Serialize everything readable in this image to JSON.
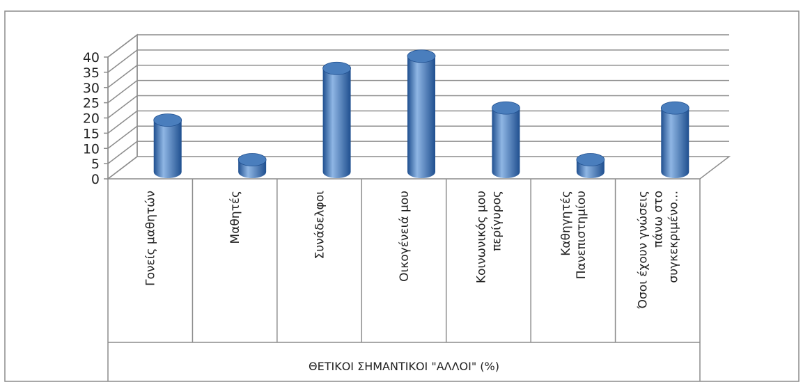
{
  "colors": {
    "bar": "#4a7ebd",
    "bar_dark": "#1f4f8f",
    "bar_light": "#8fb6e4",
    "grid": "#8c8c8c",
    "frame": "#8c8c8c"
  },
  "chart_data": {
    "type": "bar",
    "style": "3d-cylinder",
    "categories": [
      "Γονείς μαθητών",
      "Μαθητές",
      "Συνάδελφοι",
      "Οικογένειά μου",
      "Κοινωνικός μου περίγυρος",
      "Καθηγητές Πανεπιστημίου",
      "Όσοι έχουν γνώσεις πάνω στο συγκεκριμένο..."
    ],
    "category_lines": [
      [
        "Γονείς μαθητών"
      ],
      [
        "Μαθητές"
      ],
      [
        "Συνάδελφοι"
      ],
      [
        "Οικογένειά μου"
      ],
      [
        "Κοινωνικός μου",
        "περίγυρος"
      ],
      [
        "Καθηγητές",
        "Πανεπιστημίου"
      ],
      [
        "Όσοι έχουν γνώσεις",
        "πάνω στο",
        "συγκεκριμένο..."
      ]
    ],
    "values": [
      17,
      4,
      34,
      38,
      21,
      4,
      21
    ],
    "title": "",
    "xlabel": "ΘΕΤΙΚΟΙ ΣΗΜΑΝΤΙΚΟΙ \"ΑΛΛΟΙ\" (%)",
    "ylabel": "",
    "ylim": [
      0,
      40
    ],
    "yticks": [
      "0",
      "5",
      "10",
      "15",
      "20",
      "25",
      "30",
      "35",
      "40"
    ],
    "grid": true,
    "legend": "none"
  }
}
